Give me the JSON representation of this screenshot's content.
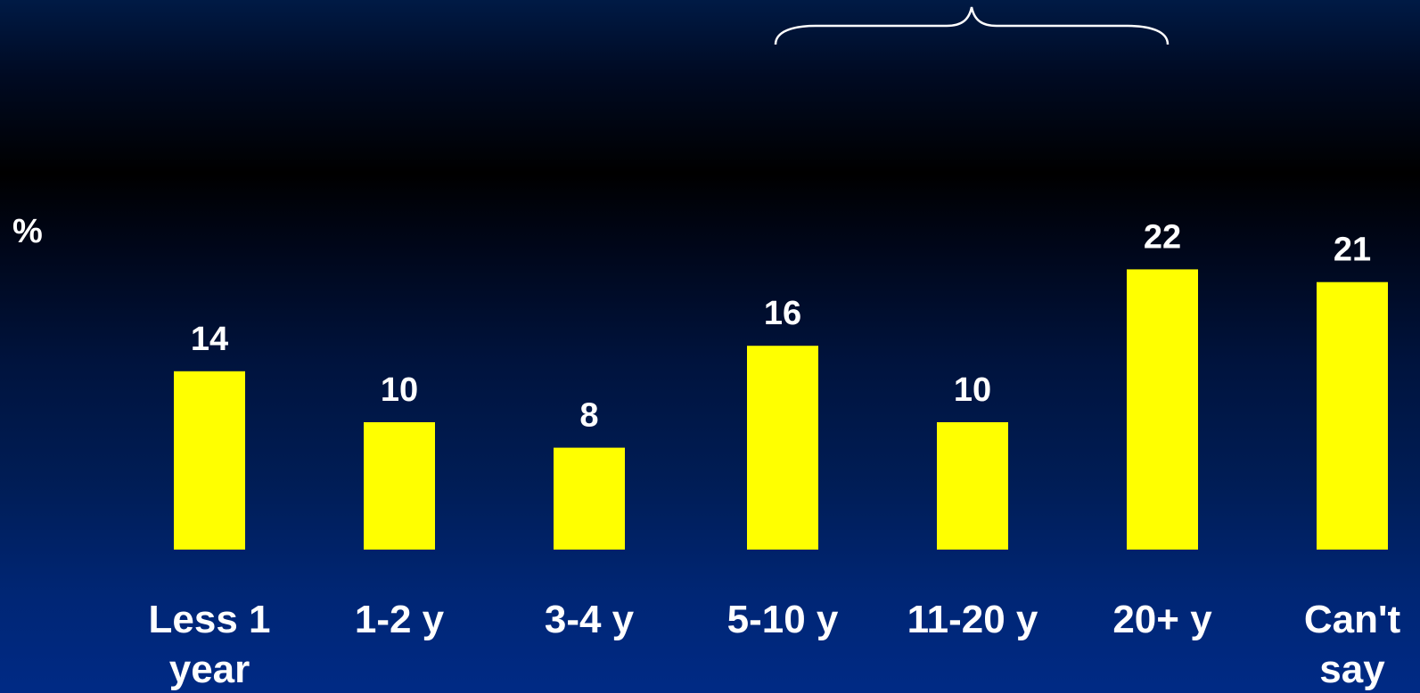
{
  "chart_data": {
    "type": "bar",
    "categories": [
      [
        "Less 1",
        "year"
      ],
      [
        "1-2 y"
      ],
      [
        "3-4 y"
      ],
      [
        "5-10 y"
      ],
      [
        "11-20 y"
      ],
      [
        "20+ y"
      ],
      [
        "Can't",
        "say"
      ]
    ],
    "values": [
      14,
      10,
      8,
      16,
      10,
      22,
      21
    ],
    "data_labels": [
      "14",
      "10",
      "8",
      "16",
      "10",
      "22",
      "21"
    ],
    "ylabel": "%",
    "ylim": [
      0,
      22
    ],
    "grid": false,
    "legend": "none",
    "bar_color": "#ffff00",
    "text_color": "#ffffff",
    "annotation": {
      "type": "brace",
      "spans_categories": [
        "5-10 y",
        "20+ y"
      ],
      "color": "#ffffff"
    }
  }
}
